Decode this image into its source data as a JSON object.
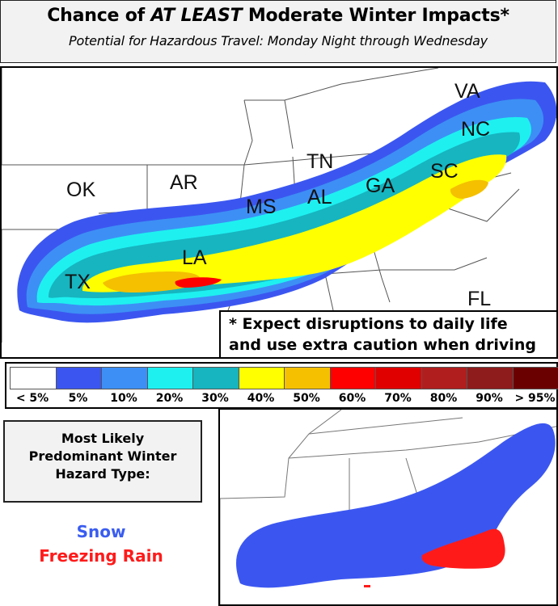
{
  "header": {
    "title_pre": "Chance of ",
    "title_em": "AT LEAST",
    "title_post": " Moderate Winter Impacts*",
    "subtitle": "Potential for Hazardous Travel: Monday Night through Wednesday"
  },
  "states": [
    "VA",
    "NC",
    "SC",
    "TN",
    "GA",
    "AL",
    "MS",
    "AR",
    "OK",
    "LA",
    "TX",
    "FL"
  ],
  "note": {
    "line1": "* Expect disruptions to daily life",
    "line2": "and use extra caution when driving"
  },
  "legend": {
    "items": [
      {
        "label": "< 5%",
        "color": "#ffffff"
      },
      {
        "label": "5%",
        "color": "#3b56f0"
      },
      {
        "label": "10%",
        "color": "#3d8ff5"
      },
      {
        "label": "20%",
        "color": "#1ef0f0"
      },
      {
        "label": "30%",
        "color": "#16b5c0"
      },
      {
        "label": "40%",
        "color": "#ffff00"
      },
      {
        "label": "50%",
        "color": "#f4c000"
      },
      {
        "label": "60%",
        "color": "#ff0000"
      },
      {
        "label": "70%",
        "color": "#e00000"
      },
      {
        "label": "80%",
        "color": "#b01e1e"
      },
      {
        "label": "90%",
        "color": "#8e1c1c"
      },
      {
        "label": "> 95%",
        "color": "#6b0000"
      }
    ]
  },
  "hazard": {
    "heading_line1": "Most Likely",
    "heading_line2": "Predominant Winter",
    "heading_line3": "Hazard Type:",
    "snow": "Snow",
    "freezing_rain": "Freezing Rain",
    "snow_color": "#3a5df0",
    "freezing_rain_color": "#ff1a1a"
  }
}
